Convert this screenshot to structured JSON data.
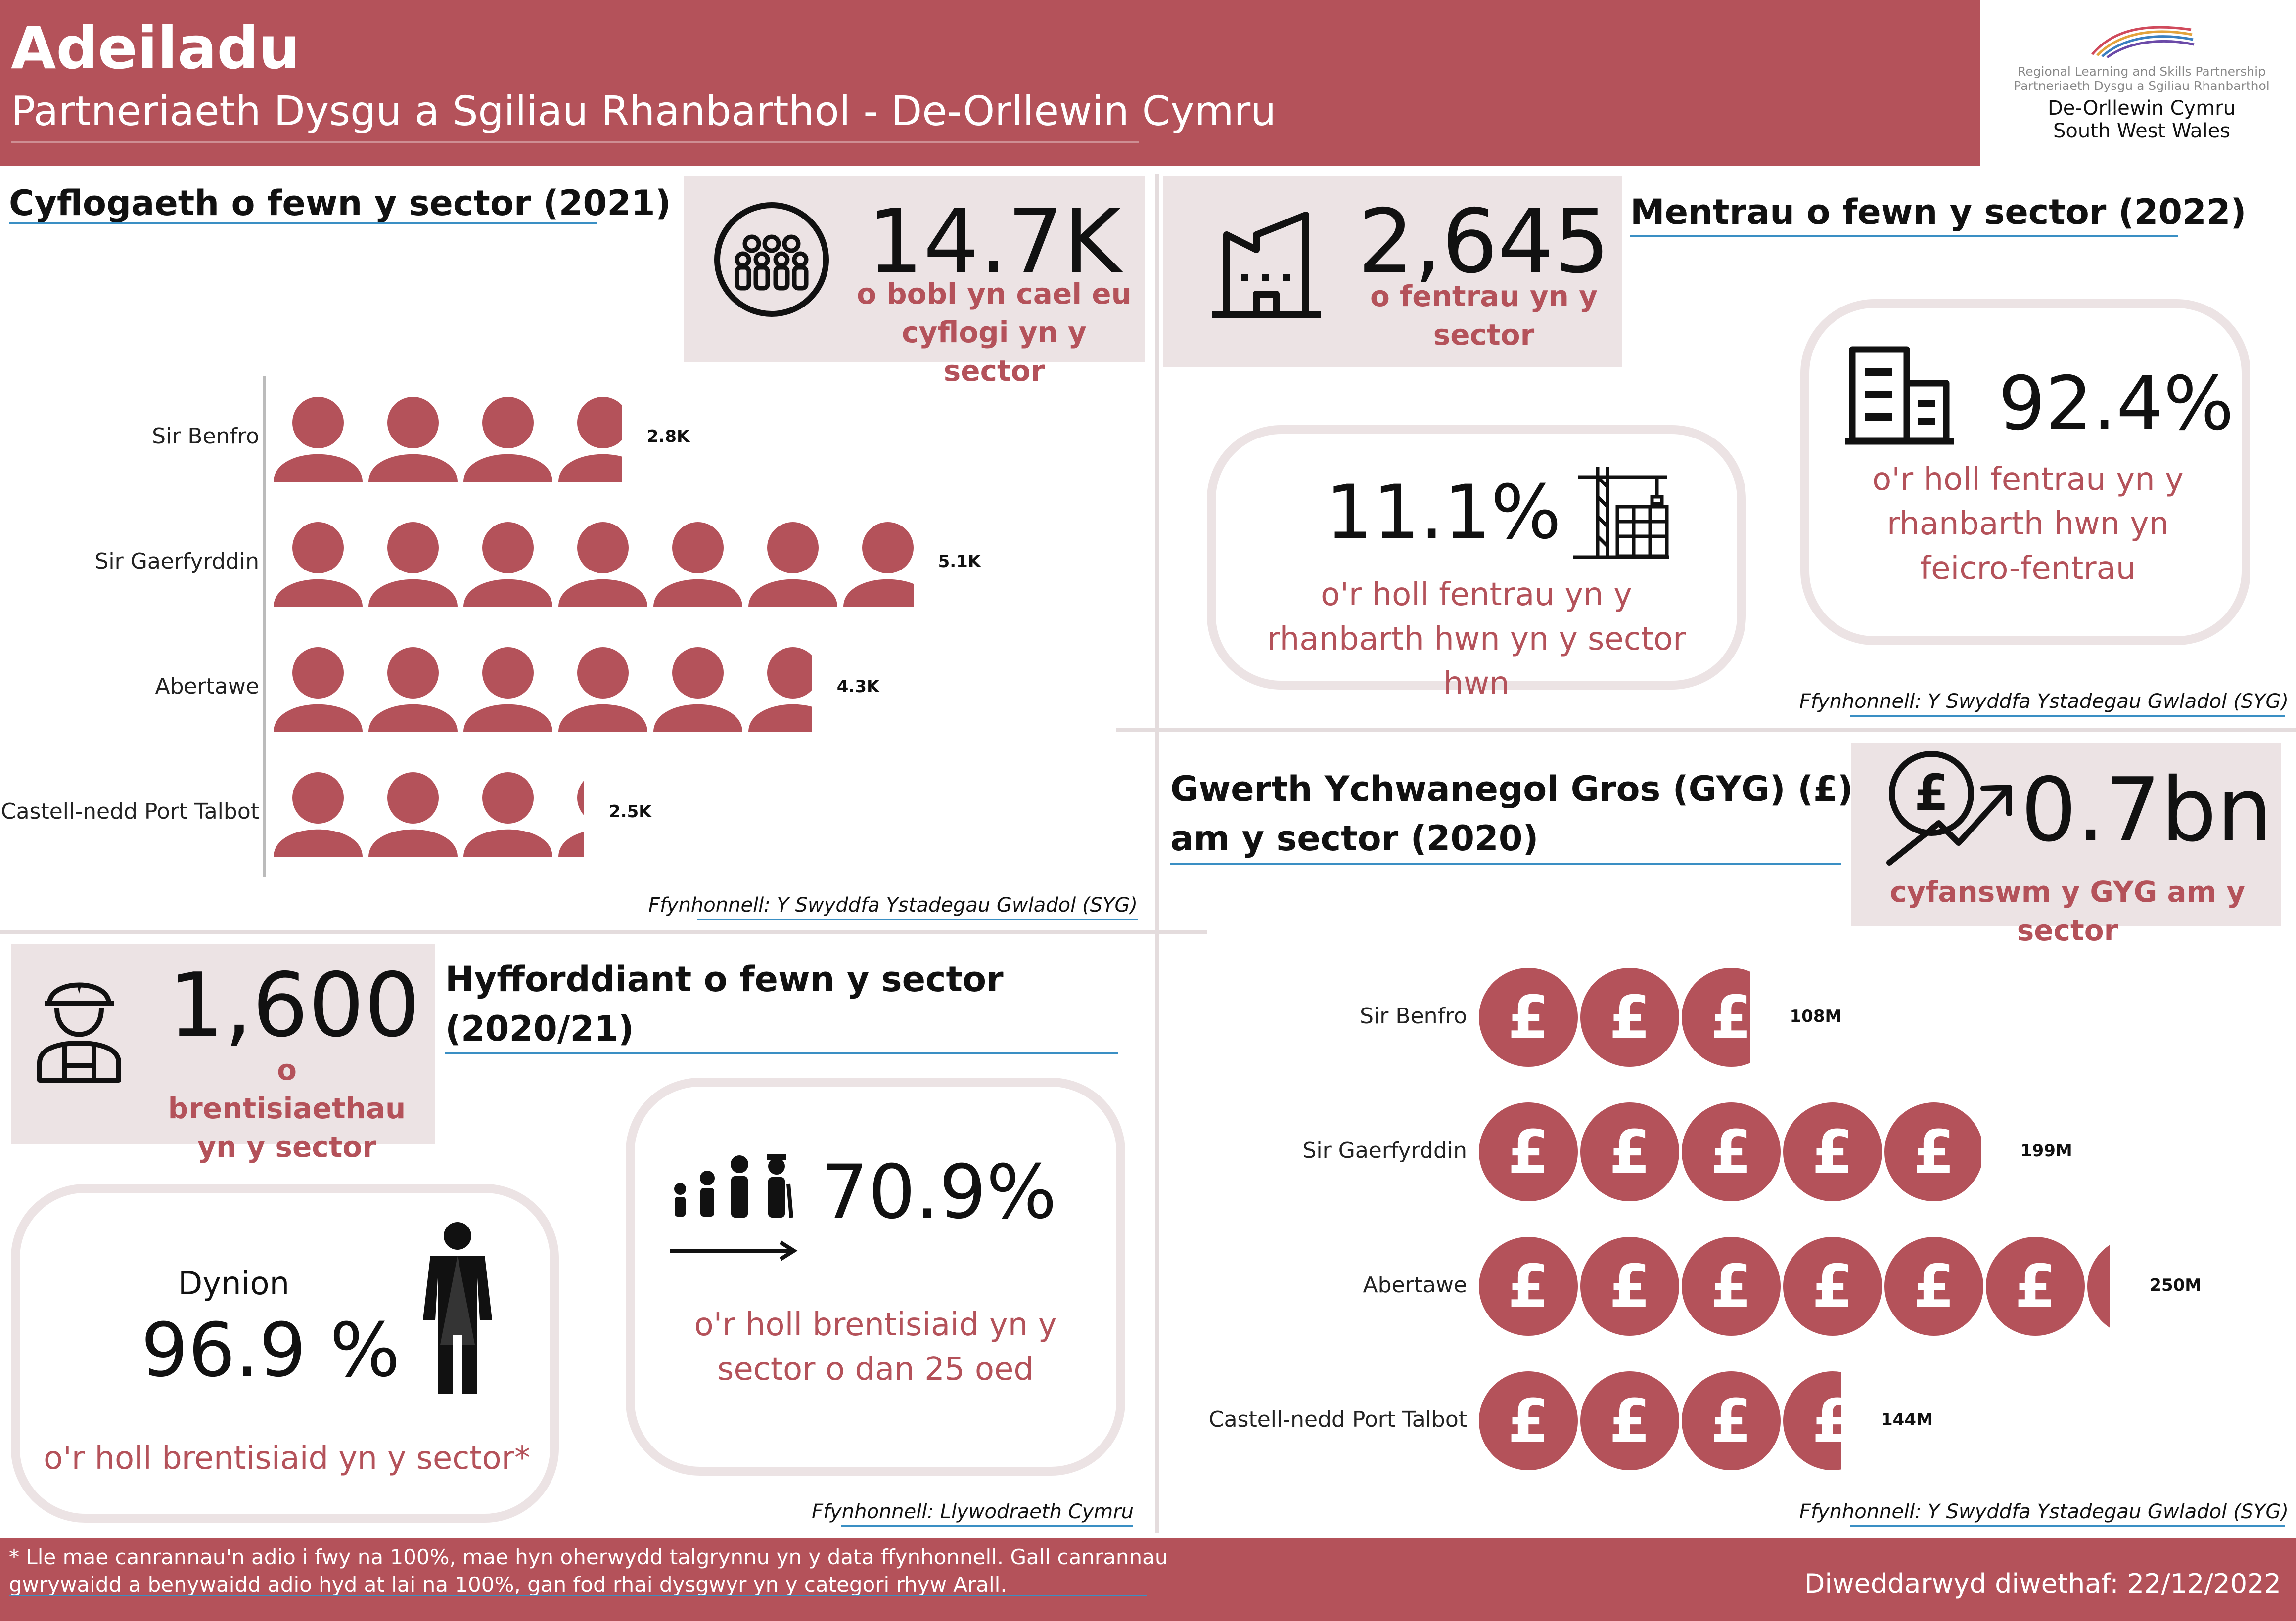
{
  "header": {
    "title": "Adeiladu",
    "subtitle": "Partneriaeth Dysgu a Sgiliau Rhanbarthol - De-Orllewin Cymru"
  },
  "logo": {
    "line1": "Regional Learning and Skills Partnership",
    "line2": "Partneriaeth Dysgu a Sgiliau Rhanbarthol",
    "line3": "De-Orllewin Cymru",
    "line4": "South West Wales"
  },
  "employment": {
    "title": "Cyflogaeth o fewn y sector (2021)",
    "kpi_value": "14.7K",
    "kpi_label": "o bobl yn cael eu cyflogi yn y sector",
    "source": "Ffynhonnell: Y Swyddfa Ystadegau Gwladol (SYG)"
  },
  "enterprises": {
    "title": "Mentrau o fewn y sector (2022)",
    "kpi_value": "2,645",
    "kpi_label": "o fentrau yn y sector",
    "pill1_value": "11.1%",
    "pill1_label": "o'r holl fentrau yn y rhanbarth hwn yn y sector hwn",
    "pill2_value": "92.4%",
    "pill2_label": "o'r holl fentrau yn y rhanbarth hwn yn feicro-fentrau",
    "source": "Ffynhonnell: Y Swyddfa Ystadegau Gwladol (SYG)"
  },
  "gva": {
    "title_line1": "Gwerth Ychwanegol Gros (GYG) (£)",
    "title_line2": "am y sector (2020)",
    "kpi_value": "0.7bn",
    "kpi_label": "cyfanswm y GYG am y sector",
    "source": "Ffynhonnell: Y Swyddfa Ystadegau Gwladol (SYG)"
  },
  "training": {
    "title_line1": "Hyfforddiant o fewn y sector",
    "title_line2": "(2020/21)",
    "kpi_value": "1,600",
    "kpi_label": "o brentisiaethau yn y sector",
    "men_label": "Dynion",
    "men_value": "96.9 %",
    "men_desc": "o'r holl brentisiaid yn y sector*",
    "under25_value": "70.9%",
    "under25_desc": "o'r holl brentisiaid yn y sector o dan 25 oed",
    "source": "Ffynhonnell: Llywodraeth Cymru"
  },
  "footer": {
    "note": "* Lle mae canrannau'n adio i fwy na 100%, mae hyn oherwydd talgrynnu yn y data ffynhonnell. Gall canrannau gwrywaidd a benywaidd adio hyd at lai na 100%, gan fod rhai dysgwyr yn y categori rhyw Arall.",
    "updated": "Diweddarwyd diwethaf: 22/12/2022"
  },
  "colors": {
    "accent": "#b4525a",
    "panel": "#ece3e4",
    "rule": "#3a8fc4"
  },
  "icons": [
    "people-group-icon",
    "factory-icon",
    "office-building-icon",
    "crane-building-icon",
    "pound-growth-icon",
    "construction-worker-icon",
    "man-woman-icon",
    "family-growth-icon",
    "person-icon",
    "pound-coin-icon"
  ],
  "chart_data": [
    {
      "type": "bar",
      "categories": [
        "Sir Benfro",
        "Sir Gaerfyrddin",
        "Abertawe",
        "Castell-nedd Port Talbot"
      ],
      "values": [
        2.8,
        5.1,
        4.3,
        2.5
      ],
      "value_labels": [
        "2.8K",
        "5.1K",
        "4.3K",
        "2.5K"
      ],
      "icon": "person-icon",
      "icon_unit": 0.75
    },
    {
      "type": "bar",
      "categories": [
        "Sir Benfro",
        "Sir Gaerfyrddin",
        "Abertawe",
        "Castell-nedd Port Talbot"
      ],
      "values": [
        108,
        199,
        250,
        144
      ],
      "value_labels": [
        "108M",
        "199M",
        "250M",
        "144M"
      ],
      "icon": "pound-coin-icon",
      "icon_unit": 40
    }
  ]
}
